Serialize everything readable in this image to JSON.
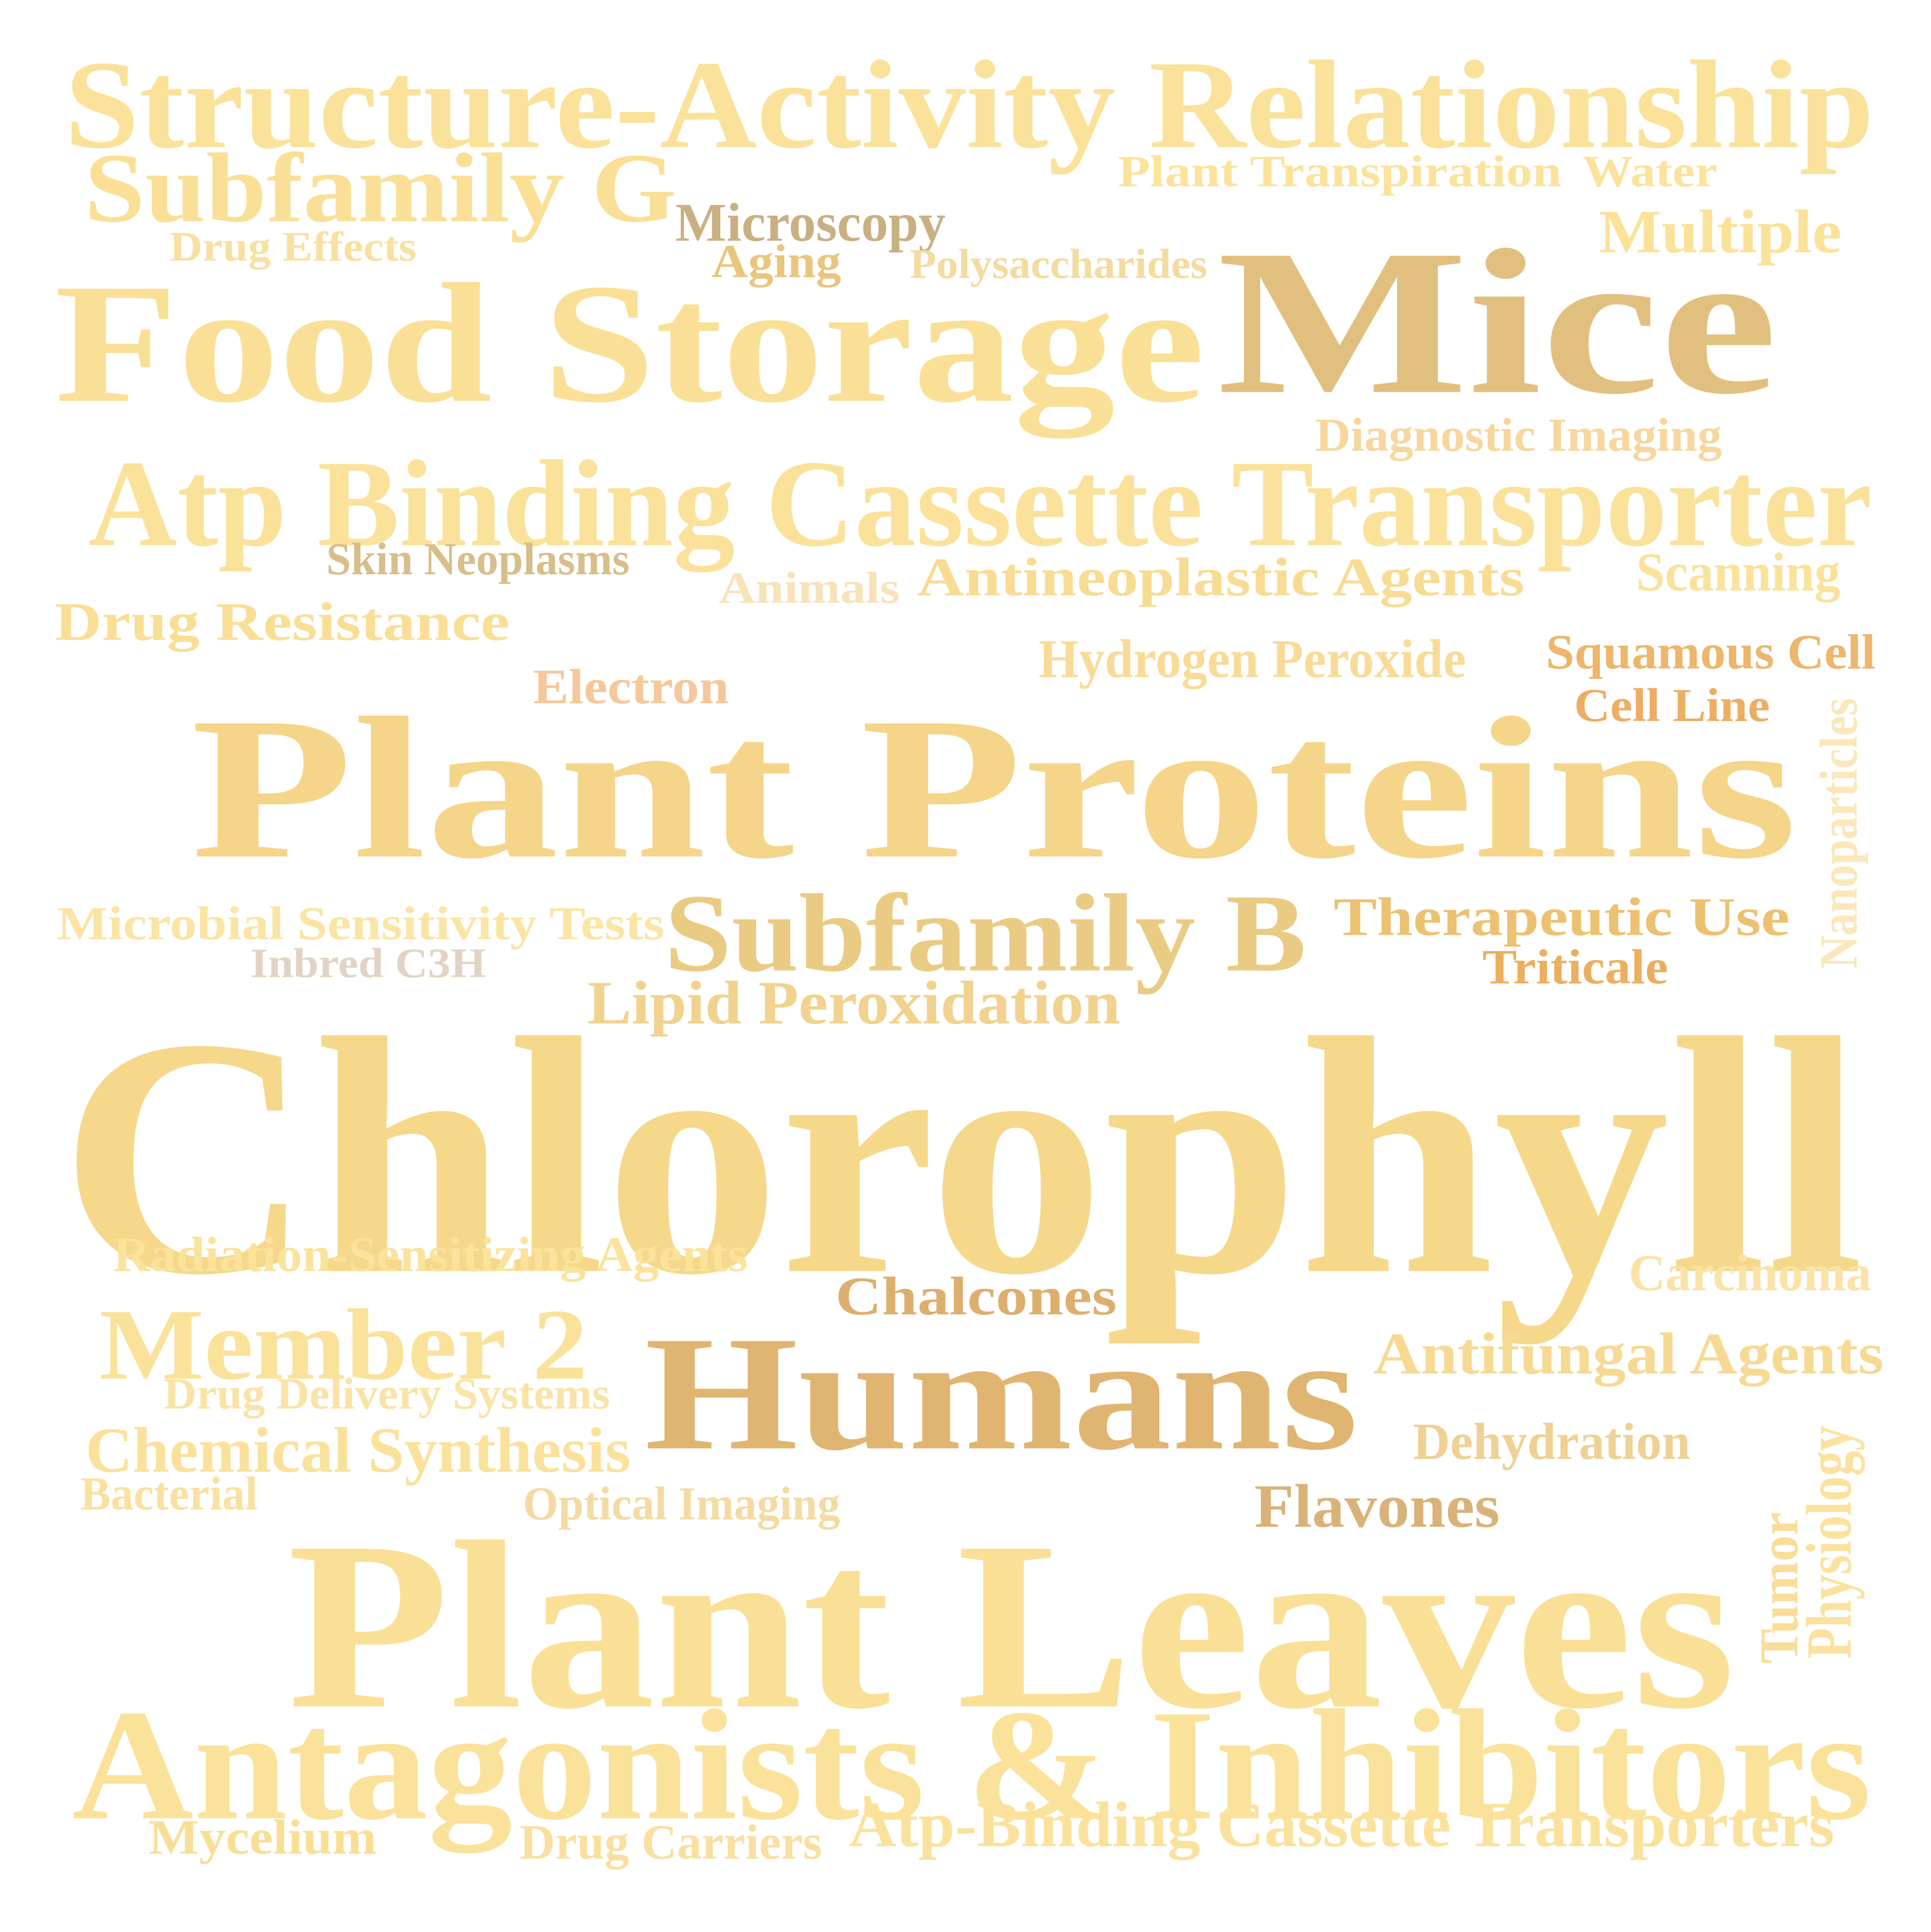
{
  "word_cloud": {
    "words": [
      {
        "text": "Structure-Activity Relationship",
        "color": "#FBE29A"
      },
      {
        "text": "Subfamily G",
        "color": "#FAE096"
      },
      {
        "text": "Plant Transpiration",
        "color": "#FBE39C"
      },
      {
        "text": "Water",
        "color": "#FBE39C"
      },
      {
        "text": "Microscopy",
        "color": "#C9B083"
      },
      {
        "text": "Drug Effects",
        "color": "#F9E0A0"
      },
      {
        "text": "Aging",
        "color": "#E9C67E"
      },
      {
        "text": "Polysaccharides",
        "color": "#F4DBA0"
      },
      {
        "text": "Multiple",
        "color": "#FBE299"
      },
      {
        "text": "Food Storage",
        "color": "#FAE096"
      },
      {
        "text": "Mice",
        "color": "#E1C07F"
      },
      {
        "text": "Diagnostic Imaging",
        "color": "#F7D79E"
      },
      {
        "text": "Atp Binding Cassette Transporter",
        "color": "#FBE29A"
      },
      {
        "text": "Skin Neoplasms",
        "color": "#D8BE8A"
      },
      {
        "text": "Animals",
        "color": "#F7E3BA"
      },
      {
        "text": "Antineoplastic Agents",
        "color": "#F8DC93"
      },
      {
        "text": "Scanning",
        "color": "#FBE29A"
      },
      {
        "text": "Drug Resistance",
        "color": "#F9DF96"
      },
      {
        "text": "Hydrogen Peroxide",
        "color": "#F9DB98"
      },
      {
        "text": "Squamous Cell",
        "color": "#EDB66B"
      },
      {
        "text": "Electron",
        "color": "#F5C79A"
      },
      {
        "text": "Cell Line",
        "color": "#EDAE63"
      },
      {
        "text": "Plant Proteins",
        "color": "#F5D58A"
      },
      {
        "text": "Nanoparticles",
        "color": "#FBE7BA"
      },
      {
        "text": "Subfamily B",
        "color": "#EACB84"
      },
      {
        "text": "Therapeutic Use",
        "color": "#EDC172"
      },
      {
        "text": "Microbial Sensitivity Tests",
        "color": "#FBE5A4"
      },
      {
        "text": "Triticale",
        "color": "#EBAF5F"
      },
      {
        "text": "Inbred C3H",
        "color": "#E1D4C4"
      },
      {
        "text": "Lipid Peroxidation",
        "color": "#F1D28E"
      },
      {
        "text": "Chlorophyll",
        "color": "#F6D88B"
      },
      {
        "text": "Radiation-Sensitizing Agents",
        "color": "#FBE39C"
      },
      {
        "text": "Carcinoma",
        "color": "#FBE3A8"
      },
      {
        "text": "Chalcones",
        "color": "#DDAF6E"
      },
      {
        "text": "Member 2",
        "color": "#FBE29A"
      },
      {
        "text": "Humans",
        "color": "#DFB571"
      },
      {
        "text": "Antifungal Agents",
        "color": "#F6DA93"
      },
      {
        "text": "Drug Delivery Systems",
        "color": "#FAE3A6"
      },
      {
        "text": "Chemical Synthesis",
        "color": "#FAE29C"
      },
      {
        "text": "Dehydration",
        "color": "#EFD193"
      },
      {
        "text": "Bacterial",
        "color": "#FAE1A0"
      },
      {
        "text": "Optical Imaging",
        "color": "#F4DBA4"
      },
      {
        "text": "Flavones",
        "color": "#D9B27A"
      },
      {
        "text": "Physiology",
        "color": "#FBE29E"
      },
      {
        "text": "Tumor",
        "color": "#F9DD99"
      },
      {
        "text": "Plant Leaves",
        "color": "#FAE096"
      },
      {
        "text": "Antagonists & Inhibitors",
        "color": "#FBE29A"
      },
      {
        "text": "Mycelium",
        "color": "#F9DF96"
      },
      {
        "text": "Drug Carriers",
        "color": "#FADFA0"
      },
      {
        "text": "Atp-Binding Cassette Transporters",
        "color": "#FBE29C"
      }
    ]
  }
}
